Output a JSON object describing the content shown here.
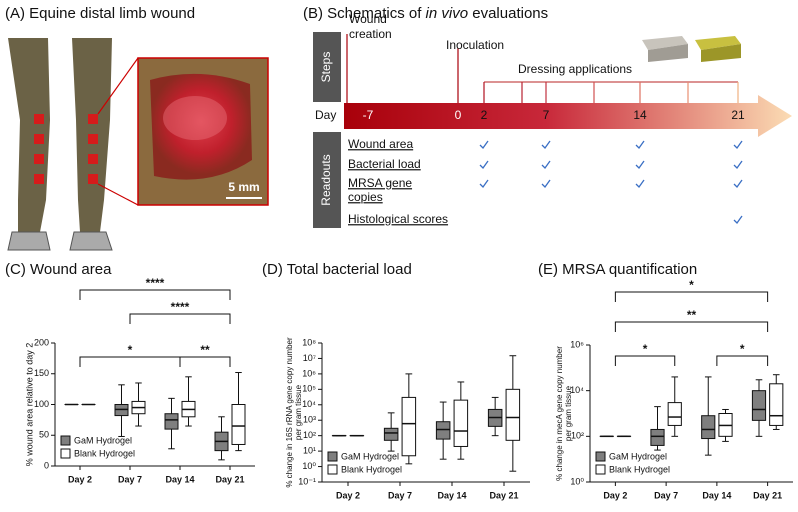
{
  "panel_a": {
    "title": "(A) Equine distal limb wound",
    "scale_bar": "5 mm"
  },
  "panel_b": {
    "title_parts": [
      "(B) Schematics of ",
      "in vivo",
      " evaluations"
    ],
    "steps_label": "Steps",
    "readouts_label": "Readouts",
    "day_label": "Day",
    "wound_creation": [
      "Wound",
      "creation"
    ],
    "inoculation": "Inoculation",
    "dressing": "Dressing applications",
    "days": [
      "-7",
      "0",
      "2",
      "7",
      "14",
      "21"
    ],
    "readouts": [
      [
        "Wound area"
      ],
      [
        "Bacterial load"
      ],
      [
        "MRSA gene",
        "copies"
      ],
      [
        "Histological scores"
      ]
    ]
  },
  "chart_data": [
    {
      "type": "box",
      "title": "(C) Wound area",
      "ylabel": [
        "% wound area relative to day 2"
      ],
      "categories": [
        "Day 2",
        "Day 7",
        "Day 14",
        "Day 21"
      ],
      "series": [
        {
          "name": "GaM Hydrogel",
          "color": "#7f7f7f",
          "values": [
            [
              100,
              100,
              100,
              100,
              100
            ],
            [
              48,
              82,
              92,
              100,
              132
            ],
            [
              28,
              60,
              75,
              85,
              110
            ],
            [
              10,
              25,
              40,
              55,
              80
            ]
          ]
        },
        {
          "name": "Blank Hydrogel",
          "color": "#ffffff",
          "values": [
            [
              100,
              100,
              100,
              100,
              100
            ],
            [
              65,
              85,
              95,
              105,
              135
            ],
            [
              65,
              80,
              92,
              105,
              145
            ],
            [
              25,
              35,
              65,
              100,
              152
            ]
          ]
        }
      ],
      "ylim": [
        0,
        200
      ],
      "yticks": [
        0,
        50,
        100,
        150,
        200
      ],
      "log_scale": false,
      "legend": "lower left",
      "annotations": [
        "****",
        "****",
        "*",
        "**"
      ]
    },
    {
      "type": "box",
      "title": "(D) Total bacterial load",
      "ylabel": [
        "% change in 16S rRNA gene copy number",
        "per gram tissue"
      ],
      "categories": [
        "Day 2",
        "Day 7",
        "Day 14",
        "Day 21"
      ],
      "series": [
        {
          "name": "GaM Hydrogel",
          "color": "#7f7f7f",
          "values": [
            [
              100,
              100,
              100,
              100,
              100
            ],
            [
              10,
              50,
              150,
              300,
              3000
            ],
            [
              3,
              60,
              250,
              800,
              15000
            ],
            [
              100,
              400,
              1500,
              5000,
              30000
            ]
          ]
        },
        {
          "name": "Blank Hydrogel",
          "color": "#ffffff",
          "values": [
            [
              100,
              100,
              100,
              100,
              100
            ],
            [
              1.5,
              5,
              600,
              30000,
              1000000
            ],
            [
              3,
              20,
              200,
              20000,
              300000
            ],
            [
              0.5,
              50,
              1500,
              100000,
              15000000
            ]
          ]
        }
      ],
      "ylim": [
        0.1,
        100000000
      ],
      "yticks": [
        {
          "value": 0.1,
          "label": "10⁻¹"
        },
        {
          "value": 1,
          "label": "10⁰"
        },
        {
          "value": 10,
          "label": "10¹"
        },
        {
          "value": 100,
          "label": "10²"
        },
        {
          "value": 1000,
          "label": "10³"
        },
        {
          "value": 10000,
          "label": "10⁴"
        },
        {
          "value": 100000,
          "label": "10⁵"
        },
        {
          "value": 1000000,
          "label": "10⁶"
        },
        {
          "value": 10000000,
          "label": "10⁷"
        },
        {
          "value": 100000000,
          "label": "10⁸"
        }
      ],
      "log_scale": true,
      "legend": "lower left",
      "annotations": []
    },
    {
      "type": "box",
      "title": "(E) MRSA quantification",
      "ylabel": [
        "% change in mecA gene copy number",
        "per gram tissue"
      ],
      "categories": [
        "Day 2",
        "Day 7",
        "Day 14",
        "Day 21"
      ],
      "series": [
        {
          "name": "GaM Hydrogel",
          "color": "#7f7f7f",
          "values": [
            [
              100,
              100,
              100,
              100,
              100
            ],
            [
              25,
              40,
              100,
              200,
              2000
            ],
            [
              15,
              80,
              200,
              800,
              40000
            ],
            [
              100,
              500,
              1500,
              10000,
              30000
            ]
          ]
        },
        {
          "name": "Blank Hydrogel",
          "color": "#ffffff",
          "values": [
            [
              100,
              100,
              100,
              100,
              100
            ],
            [
              100,
              300,
              700,
              3000,
              40000
            ],
            [
              60,
              100,
              300,
              1000,
              1500
            ],
            [
              200,
              300,
              800,
              20000,
              50000
            ]
          ]
        }
      ],
      "ylim": [
        1,
        1000000
      ],
      "yticks": [
        {
          "value": 1,
          "label": "10⁰"
        },
        {
          "value": 100,
          "label": "10²"
        },
        {
          "value": 10000,
          "label": "10⁴"
        },
        {
          "value": 1000000,
          "label": "10⁶"
        }
      ],
      "log_scale": true,
      "legend": "lower left",
      "annotations": [
        "*",
        "**",
        "*",
        "*"
      ]
    }
  ]
}
